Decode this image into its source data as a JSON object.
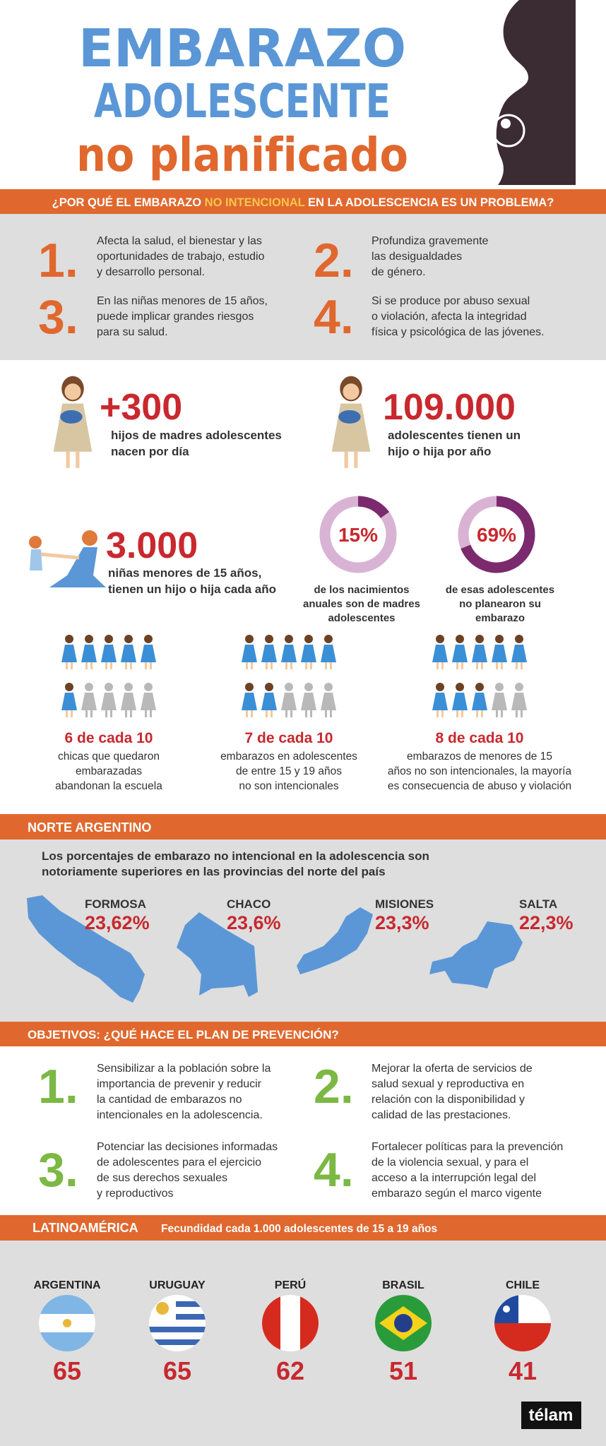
{
  "header": {
    "title_line1": "EMBARAZO",
    "title_line2": "ADOLESCENTE",
    "title_line3": "no planificado"
  },
  "problem": {
    "heading_pre": "¿POR QUÉ EL EMBARAZO ",
    "heading_highlight": "NO INTENCIONAL",
    "heading_post": " EN LA ADOLESCENCIA ES UN PROBLEMA?",
    "items": [
      {
        "number": "1.",
        "lines": [
          "Afecta la salud, el bienestar y las",
          "oportunidades de trabajo, estudio",
          "y desarrollo personal."
        ]
      },
      {
        "number": "2.",
        "lines": [
          "Profundiza gravemente",
          "las desigualdades",
          "de género."
        ]
      },
      {
        "number": "3.",
        "lines": [
          "En las niñas menores de 15 años,",
          "puede implicar grandes riesgos",
          "para su salud."
        ]
      },
      {
        "number": "4.",
        "lines": [
          "Si se produce por abuso sexual",
          "o violación, afecta la integridad",
          "física y psicológica de las jóvenes."
        ]
      }
    ]
  },
  "stats": [
    {
      "figure": "+300",
      "lines": [
        "hijos de madres adolescentes",
        "nacen por día"
      ]
    },
    {
      "figure": "109.000",
      "lines": [
        "adolescentes tienen un",
        "hijo o hija por año"
      ]
    },
    {
      "figure": "3.000",
      "lines": [
        "niñas menores de 15 años,",
        "tienen un hijo o hija cada año"
      ]
    }
  ],
  "donuts": [
    {
      "value": 15,
      "label": "15%",
      "lines": [
        "de los nacimientos",
        "anuales son de madres",
        "adolescentes"
      ]
    },
    {
      "value": 69,
      "label": "69%",
      "lines": [
        "de esas adolescentes",
        "no planearon su",
        "embarazo"
      ]
    }
  ],
  "ratios": [
    {
      "count": 6,
      "total": 10,
      "label": "6 de cada 10",
      "lines": [
        "chicas que quedaron",
        "embarazadas",
        "abandonan la escuela"
      ]
    },
    {
      "count": 7,
      "total": 10,
      "label": "7 de cada 10",
      "lines": [
        "embarazos en adolescentes",
        "de entre 15 y 19 años",
        "no son intencionales"
      ]
    },
    {
      "count": 8,
      "total": 10,
      "label": "8 de cada 10",
      "lines": [
        "embarazos de menores de 15",
        "años no son intencionales, la mayoría",
        "es consecuencia de abuso y violación"
      ]
    }
  ],
  "north": {
    "heading": "NORTE ARGENTINO",
    "lines": [
      "Los porcentajes de embarazo no intencional en la adolescencia son",
      "notoriamente superiores en las provincias del norte del país"
    ],
    "provinces": [
      {
        "name": "FORMOSA",
        "value": "23,62%"
      },
      {
        "name": "CHACO",
        "value": "23,6%"
      },
      {
        "name": "MISIONES",
        "value": "23,3%"
      },
      {
        "name": "SALTA",
        "value": "22,3%"
      }
    ]
  },
  "objectives": {
    "heading": "OBJETIVOS: ¿QUÉ HACE EL PLAN DE PREVENCIÓN?",
    "items": [
      {
        "number": "1.",
        "lines": [
          "Sensibilizar a la población sobre la",
          "importancia de prevenir y reducir",
          "la cantidad de embarazos no",
          "intencionales en la adolescencia."
        ]
      },
      {
        "number": "2.",
        "lines": [
          "Mejorar la oferta de servicios de",
          "salud sexual y reproductiva en",
          "relación con la disponibilidad y",
          "calidad de las prestaciones."
        ]
      },
      {
        "number": "3.",
        "lines": [
          "Potenciar las decisiones informadas",
          "de adolescentes para el ejercicio",
          "de sus derechos sexuales",
          "y reproductivos"
        ]
      },
      {
        "number": "4.",
        "lines": [
          "Fortalecer políticas para la prevención",
          "de la violencia sexual, y para el",
          "acceso a la interrupción legal del",
          "embarazo según el marco vigente"
        ]
      }
    ]
  },
  "latam": {
    "heading": "LATINOAMÉRICA",
    "subheading": "Fecundidad cada 1.000 adolescentes de 15 a 19 años",
    "countries": [
      {
        "name": "ARGENTINA",
        "value": 65
      },
      {
        "name": "URUGUAY",
        "value": 65
      },
      {
        "name": "PERÚ",
        "value": 62
      },
      {
        "name": "BRASIL",
        "value": 51
      },
      {
        "name": "CHILE",
        "value": 41
      }
    ]
  },
  "logo": "télam"
}
